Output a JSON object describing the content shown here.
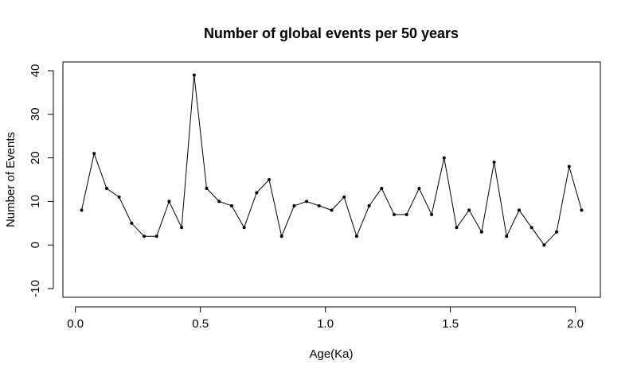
{
  "chart_data": {
    "type": "line",
    "title": "Number of global events per 50 years",
    "xlabel": "Age(Ka)",
    "ylabel": "Number of Events",
    "xlim": [
      -0.05,
      2.1
    ],
    "ylim": [
      -12,
      42
    ],
    "x_ticks": [
      "0.0",
      "0.5",
      "1.0",
      "1.5",
      "2.0"
    ],
    "x_tick_values": [
      0.0,
      0.5,
      1.0,
      1.5,
      2.0
    ],
    "y_ticks": [
      "-10",
      "0",
      "10",
      "20",
      "30",
      "40"
    ],
    "y_tick_values": [
      -10,
      0,
      10,
      20,
      30,
      40
    ],
    "grid": false,
    "legend": "none",
    "marker": "dot",
    "line_color": "#000000",
    "series": [
      {
        "x": [
          0.025,
          0.075,
          0.125,
          0.175,
          0.225,
          0.275,
          0.325,
          0.375,
          0.425,
          0.475,
          0.525,
          0.575,
          0.625,
          0.675,
          0.725,
          0.775,
          0.825,
          0.875,
          0.925,
          0.975,
          1.025,
          1.075,
          1.125,
          1.175,
          1.225,
          1.275,
          1.325,
          1.375,
          1.425,
          1.475,
          1.525,
          1.575,
          1.625,
          1.675,
          1.725,
          1.775,
          1.825,
          1.875,
          1.925,
          1.975,
          2.025
        ],
        "values": [
          8,
          21,
          13,
          11,
          5,
          2,
          2,
          10,
          4,
          39,
          13,
          10,
          9,
          4,
          12,
          15,
          2,
          9,
          10,
          9,
          8,
          11,
          2,
          9,
          13,
          7,
          7,
          13,
          7,
          20,
          4,
          8,
          3,
          19,
          2,
          8,
          4,
          0,
          3,
          18,
          8
        ]
      }
    ]
  }
}
